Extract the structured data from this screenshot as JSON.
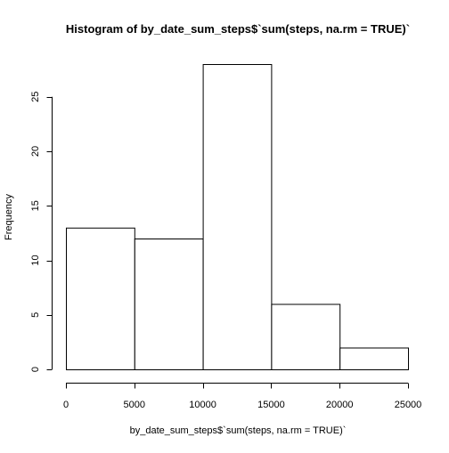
{
  "chart_data": {
    "type": "bar",
    "title": "Histogram of by_date_sum_steps$`sum(steps, na.rm = TRUE)`",
    "xlabel": "by_date_sum_steps$`sum(steps, na.rm = TRUE)`",
    "ylabel": "Frequency",
    "bins": [
      {
        "from": 0,
        "to": 5000,
        "count": 13
      },
      {
        "from": 5000,
        "to": 10000,
        "count": 12
      },
      {
        "from": 10000,
        "to": 15000,
        "count": 28
      },
      {
        "from": 15000,
        "to": 20000,
        "count": 6
      },
      {
        "from": 20000,
        "to": 25000,
        "count": 2
      }
    ],
    "xlim": [
      0,
      25000
    ],
    "ylim": [
      0,
      28
    ],
    "x_ticks": [
      0,
      5000,
      10000,
      15000,
      20000,
      25000
    ],
    "y_ticks": [
      0,
      5,
      10,
      15,
      20,
      25
    ],
    "bar_fill": "#ffffff",
    "bar_stroke": "#000000",
    "grid": false,
    "legend": "none"
  }
}
